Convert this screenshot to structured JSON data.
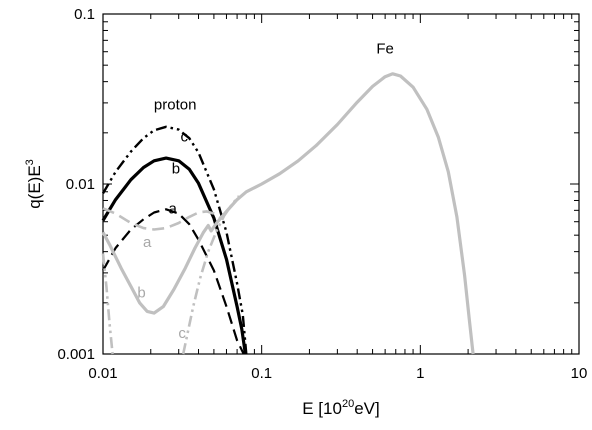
{
  "chart_data": {
    "type": "line",
    "xscale": "log",
    "yscale": "log",
    "xlim": [
      0.01,
      10
    ],
    "ylim": [
      0.001,
      0.1
    ],
    "grid": false,
    "xlabel": {
      "base": "E [10",
      "sup": "20",
      "rest": "eV]"
    },
    "ylabel": {
      "base": "q(E)E",
      "sup": "3"
    },
    "xticks": [
      {
        "value": 0.01,
        "label": "0.01"
      },
      {
        "value": 0.1,
        "label": "0.1"
      },
      {
        "value": 1,
        "label": "1"
      },
      {
        "value": 10,
        "label": "10"
      }
    ],
    "yticks": [
      {
        "value": 0.001,
        "label": "0.001"
      },
      {
        "value": 0.01,
        "label": "0.01"
      },
      {
        "value": 0.1,
        "label": "0.1"
      }
    ],
    "colors": {
      "proton": "#000000",
      "fe": "#c0c0c0"
    },
    "series": [
      {
        "id": "proton-a",
        "color": "#000000",
        "dash": "long-dash",
        "width": 2.2,
        "points": [
          [
            0.01,
            0.0031
          ],
          [
            0.012,
            0.0042
          ],
          [
            0.015,
            0.0054
          ],
          [
            0.018,
            0.0062
          ],
          [
            0.021,
            0.0068
          ],
          [
            0.025,
            0.0071
          ],
          [
            0.03,
            0.0067
          ],
          [
            0.035,
            0.0058
          ],
          [
            0.04,
            0.0047
          ],
          [
            0.05,
            0.0031
          ],
          [
            0.06,
            0.0019
          ],
          [
            0.07,
            0.0012
          ],
          [
            0.077,
            0.001
          ]
        ]
      },
      {
        "id": "proton-b",
        "color": "#000000",
        "dash": "solid",
        "width": 3.2,
        "points": [
          [
            0.01,
            0.0061
          ],
          [
            0.012,
            0.0081
          ],
          [
            0.015,
            0.0106
          ],
          [
            0.018,
            0.0125
          ],
          [
            0.021,
            0.0137
          ],
          [
            0.025,
            0.0142
          ],
          [
            0.03,
            0.0137
          ],
          [
            0.035,
            0.0122
          ],
          [
            0.04,
            0.0101
          ],
          [
            0.05,
            0.0063
          ],
          [
            0.06,
            0.0036
          ],
          [
            0.07,
            0.0019
          ],
          [
            0.075,
            0.0014
          ],
          [
            0.079,
            0.001
          ]
        ]
      },
      {
        "id": "proton-c",
        "color": "#000000",
        "dash": "dash-dot-dot",
        "width": 2.4,
        "points": [
          [
            0.01,
            0.0088
          ],
          [
            0.012,
            0.0118
          ],
          [
            0.015,
            0.0155
          ],
          [
            0.018,
            0.0186
          ],
          [
            0.021,
            0.0207
          ],
          [
            0.025,
            0.0217
          ],
          [
            0.03,
            0.0209
          ],
          [
            0.035,
            0.0186
          ],
          [
            0.04,
            0.0153
          ],
          [
            0.05,
            0.0093
          ],
          [
            0.06,
            0.0052
          ],
          [
            0.07,
            0.0026
          ],
          [
            0.076,
            0.0017
          ],
          [
            0.08,
            0.001
          ]
        ]
      },
      {
        "id": "fe-a",
        "color": "#c0c0c0",
        "dash": "long-dash",
        "width": 2.6,
        "points": [
          [
            0.01,
            0.0072
          ],
          [
            0.012,
            0.0067
          ],
          [
            0.015,
            0.0059
          ],
          [
            0.018,
            0.0055
          ],
          [
            0.021,
            0.0054
          ],
          [
            0.025,
            0.0055
          ],
          [
            0.03,
            0.0059
          ],
          [
            0.035,
            0.0064
          ],
          [
            0.04,
            0.0068
          ],
          [
            0.045,
            0.0069
          ],
          [
            0.05,
            0.0067
          ],
          [
            0.055,
            0.0063
          ]
        ]
      },
      {
        "id": "fe-b",
        "color": "#c0c0c0",
        "dash": "solid",
        "width": 3.2,
        "points": [
          [
            0.01,
            0.0052
          ],
          [
            0.011,
            0.0044
          ],
          [
            0.013,
            0.0032
          ],
          [
            0.015,
            0.0025
          ],
          [
            0.017,
            0.002
          ],
          [
            0.019,
            0.00178
          ],
          [
            0.021,
            0.00174
          ],
          [
            0.024,
            0.0019
          ],
          [
            0.028,
            0.0024
          ],
          [
            0.033,
            0.0032
          ],
          [
            0.038,
            0.0042
          ],
          [
            0.043,
            0.0052
          ],
          [
            0.046,
            0.0057
          ],
          [
            0.048,
            0.0053
          ],
          [
            0.052,
            0.0059
          ],
          [
            0.06,
            0.0069
          ],
          [
            0.07,
            0.0081
          ],
          [
            0.08,
            0.009
          ],
          [
            0.1,
            0.01
          ],
          [
            0.13,
            0.0115
          ],
          [
            0.17,
            0.0137
          ],
          [
            0.22,
            0.0168
          ],
          [
            0.3,
            0.0224
          ],
          [
            0.4,
            0.0303
          ],
          [
            0.5,
            0.0375
          ],
          [
            0.6,
            0.0428
          ],
          [
            0.67,
            0.0445
          ],
          [
            0.75,
            0.0432
          ],
          [
            0.9,
            0.0371
          ],
          [
            1.1,
            0.0275
          ],
          [
            1.3,
            0.0188
          ],
          [
            1.5,
            0.0118
          ],
          [
            1.7,
            0.0064
          ],
          [
            1.9,
            0.0029
          ],
          [
            2.05,
            0.0015
          ],
          [
            2.15,
            0.001
          ]
        ]
      },
      {
        "id": "fe-c",
        "color": "#c0c0c0",
        "dash": "dash-dot-dot",
        "width": 2.6,
        "points": [
          [
            0.01,
            0.0039
          ],
          [
            0.0105,
            0.0025
          ],
          [
            0.011,
            0.0015
          ],
          [
            0.0115,
            0.001
          ]
        ]
      },
      {
        "id": "fe-c2",
        "color": "#c0c0c0",
        "dash": "dash-dot-dot",
        "width": 2.6,
        "points": [
          [
            0.032,
            0.001
          ],
          [
            0.034,
            0.0013
          ],
          [
            0.037,
            0.0019
          ],
          [
            0.041,
            0.0028
          ],
          [
            0.046,
            0.004
          ],
          [
            0.052,
            0.0053
          ],
          [
            0.058,
            0.0065
          ],
          [
            0.065,
            0.0076
          ],
          [
            0.072,
            0.0085
          ]
        ]
      }
    ],
    "annotations": [
      {
        "text": "proton",
        "x": 0.0285,
        "y": 0.0275,
        "color": "#000000"
      },
      {
        "text": "c",
        "x": 0.0325,
        "y": 0.0178,
        "color": "#000000"
      },
      {
        "text": "b",
        "x": 0.0288,
        "y": 0.0115,
        "color": "#000000"
      },
      {
        "text": "a",
        "x": 0.0275,
        "y": 0.0067,
        "color": "#000000"
      },
      {
        "text": "a",
        "x": 0.019,
        "y": 0.00425,
        "color": "#a8a8a8"
      },
      {
        "text": "b",
        "x": 0.0175,
        "y": 0.00215,
        "color": "#a8a8a8"
      },
      {
        "text": "c",
        "x": 0.0315,
        "y": 0.00124,
        "color": "#a8a8a8"
      },
      {
        "text": "Fe",
        "x": 0.6,
        "y": 0.0585,
        "color": "#000000"
      }
    ]
  }
}
